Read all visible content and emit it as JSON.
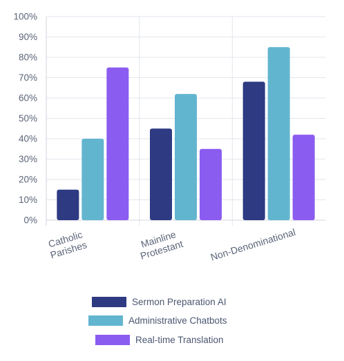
{
  "chart_data": {
    "type": "bar",
    "categories": [
      [
        "Catholic",
        "Parishes"
      ],
      [
        "Mainline",
        "Protestant"
      ],
      [
        "Non-Denominational"
      ]
    ],
    "series": [
      {
        "name": "Sermon Preparation AI",
        "color": "#2e3a82",
        "values": [
          15,
          45,
          68
        ]
      },
      {
        "name": "Administrative Chatbots",
        "color": "#62b5cf",
        "values": [
          40,
          62,
          85
        ]
      },
      {
        "name": "Real-time Translation",
        "color": "#8b5cf0",
        "values": [
          75,
          35,
          42
        ]
      }
    ],
    "y_ticks": [
      "0%",
      "10%",
      "20%",
      "30%",
      "40%",
      "50%",
      "60%",
      "70%",
      "80%",
      "90%",
      "100%"
    ],
    "ylim": [
      0,
      100
    ],
    "grid": true,
    "legend_position": "bottom"
  }
}
